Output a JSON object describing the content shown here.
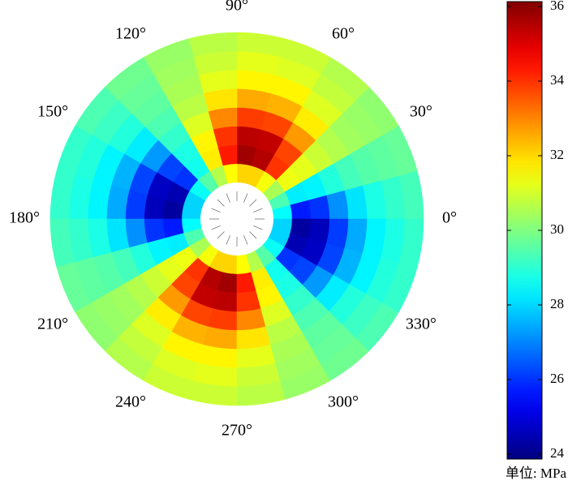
{
  "chart_data": {
    "type": "polar_heatmap",
    "colormap": "jet",
    "values": [
      [
        28.5,
        29.4,
        30.5,
        31.4,
        32.0,
        32.0,
        31.5,
        30.6,
        29.5,
        28.6,
        28.0,
        28.0,
        28.5,
        29.4,
        30.5,
        31.4,
        32.0,
        32.0,
        31.5,
        30.6,
        29.5,
        28.6,
        28.0,
        28.0
      ],
      [
        25.8,
        28.3,
        31.3,
        33.9,
        35.4,
        35.6,
        34.2,
        31.7,
        28.7,
        26.1,
        24.6,
        24.4,
        25.8,
        28.3,
        31.3,
        33.9,
        35.4,
        35.6,
        34.2,
        31.7,
        28.7,
        26.1,
        24.6,
        24.4
      ],
      [
        26.1,
        28.4,
        31.2,
        33.7,
        35.2,
        35.3,
        33.9,
        31.6,
        28.8,
        26.3,
        24.8,
        24.7,
        26.1,
        28.4,
        31.2,
        33.7,
        35.2,
        35.3,
        33.9,
        31.6,
        28.8,
        26.3,
        24.8,
        24.7
      ],
      [
        27.2,
        28.9,
        30.9,
        32.7,
        33.7,
        33.8,
        32.9,
        31.1,
        29.1,
        27.3,
        26.3,
        26.2,
        27.2,
        28.9,
        30.9,
        32.7,
        33.7,
        33.8,
        32.9,
        31.1,
        29.1,
        27.3,
        26.3,
        26.2
      ],
      [
        28.2,
        29.3,
        30.6,
        31.7,
        32.4,
        32.5,
        31.8,
        30.7,
        29.4,
        28.3,
        27.6,
        27.5,
        28.2,
        29.3,
        30.6,
        31.7,
        32.4,
        32.5,
        31.8,
        30.7,
        29.4,
        28.3,
        27.6,
        27.5
      ],
      [
        28.8,
        29.5,
        30.4,
        31.1,
        31.6,
        31.6,
        31.2,
        30.5,
        29.6,
        28.9,
        28.4,
        28.4,
        28.8,
        29.5,
        30.4,
        31.1,
        31.6,
        31.6,
        31.2,
        30.5,
        29.6,
        28.9,
        28.4,
        28.4
      ],
      [
        29.1,
        29.6,
        30.3,
        30.8,
        31.1,
        31.2,
        30.9,
        30.4,
        29.7,
        29.2,
        28.9,
        28.8,
        29.1,
        29.6,
        30.3,
        30.8,
        31.1,
        31.2,
        30.9,
        30.4,
        29.7,
        29.2,
        28.9,
        28.8
      ],
      [
        29.3,
        29.7,
        30.2,
        30.6,
        30.9,
        30.9,
        30.7,
        30.3,
        29.8,
        29.4,
        29.1,
        29.1,
        29.3,
        29.7,
        30.2,
        30.6,
        30.9,
        30.9,
        30.7,
        30.3,
        29.8,
        29.4,
        29.1,
        29.1
      ]
    ],
    "thetaticks": [
      {
        "value": 0,
        "label": "0°"
      },
      {
        "value": 30,
        "label": "30°"
      },
      {
        "value": 60,
        "label": "60°"
      },
      {
        "value": 90,
        "label": "90°"
      },
      {
        "value": 120,
        "label": "120°"
      },
      {
        "value": 150,
        "label": "150°"
      },
      {
        "value": 180,
        "label": "180°"
      },
      {
        "value": 210,
        "label": "210°"
      },
      {
        "value": 240,
        "label": "240°"
      },
      {
        "value": 270,
        "label": "270°"
      },
      {
        "value": 300,
        "label": "300°"
      },
      {
        "value": 330,
        "label": "330°"
      }
    ],
    "clim": [
      24,
      36
    ],
    "cticks": [
      24,
      26,
      28,
      30,
      32,
      34,
      36
    ],
    "colorbar_label": "单位: MPa"
  }
}
